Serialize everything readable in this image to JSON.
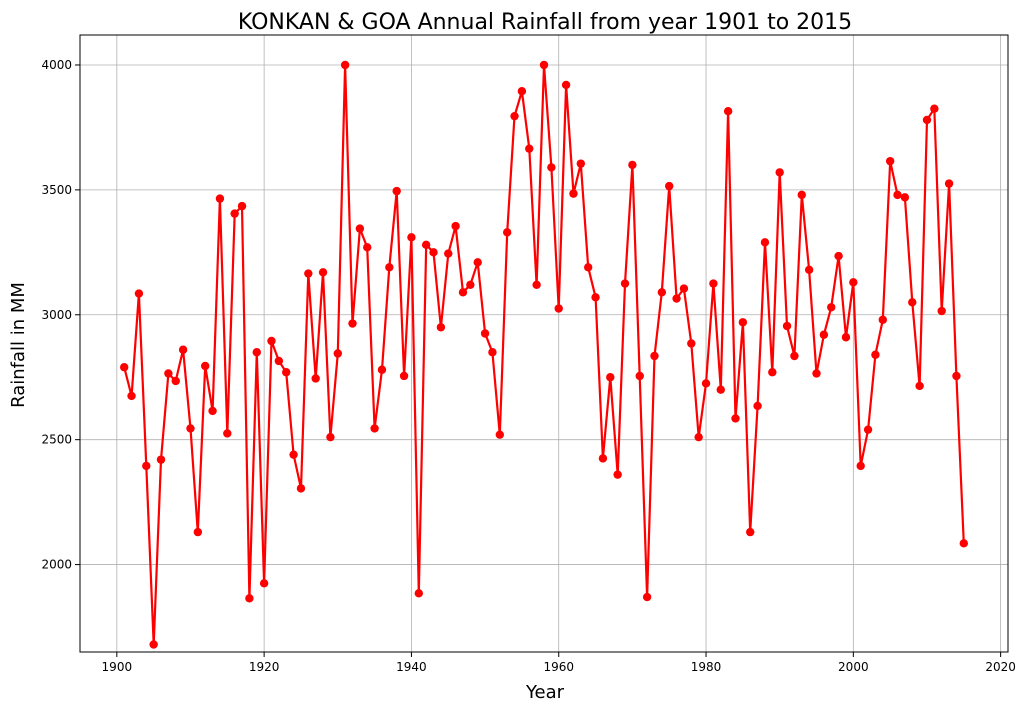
{
  "chart_data": {
    "type": "line",
    "title": "KONKAN & GOA Annual Rainfall from year 1901 to 2015",
    "xlabel": "Year",
    "ylabel": "Rainfall in MM",
    "xlim": [
      1895,
      2021
    ],
    "ylim": [
      1650,
      4120
    ],
    "xticks": [
      1900,
      1920,
      1940,
      1960,
      1980,
      2000,
      2020
    ],
    "yticks": [
      2000,
      2500,
      3000,
      3500,
      4000
    ],
    "grid": true,
    "color": "#ff0000",
    "marker": "circle",
    "series": [
      {
        "x": [
          1901,
          1902,
          1903,
          1904,
          1905,
          1906,
          1907,
          1908,
          1909,
          1910,
          1911,
          1912,
          1913,
          1914,
          1915,
          1916,
          1917,
          1918,
          1919,
          1920,
          1921,
          1922,
          1923,
          1924,
          1925,
          1926,
          1927,
          1928,
          1929,
          1930,
          1931,
          1932,
          1933,
          1934,
          1935,
          1936,
          1937,
          1938,
          1939,
          1940,
          1941,
          1942,
          1943,
          1944,
          1945,
          1946,
          1947,
          1948,
          1949,
          1950,
          1951,
          1952,
          1953,
          1954,
          1955,
          1956,
          1957,
          1958,
          1959,
          1960,
          1961,
          1962,
          1963,
          1964,
          1965,
          1966,
          1967,
          1968,
          1969,
          1970,
          1971,
          1972,
          1973,
          1974,
          1975,
          1976,
          1977,
          1978,
          1979,
          1980,
          1981,
          1982,
          1983,
          1984,
          1985,
          1986,
          1987,
          1988,
          1989,
          1990,
          1991,
          1992,
          1993,
          1994,
          1995,
          1996,
          1997,
          1998,
          1999,
          2000,
          2001,
          2002,
          2003,
          2004,
          2005,
          2006,
          2007,
          2008,
          2009,
          2010,
          2011,
          2012,
          2013,
          2014,
          2015
        ],
        "y": [
          2790,
          2675,
          3085,
          2395,
          1680,
          2420,
          2765,
          2735,
          2860,
          2545,
          2130,
          2795,
          2615,
          3465,
          2525,
          3405,
          3435,
          1865,
          2850,
          1925,
          2895,
          2815,
          2770,
          2440,
          2305,
          3165,
          2745,
          3170,
          2510,
          2845,
          4000,
          2965,
          3345,
          3270,
          2545,
          2780,
          3190,
          3495,
          2755,
          3310,
          1885,
          3280,
          3250,
          2950,
          3245,
          3355,
          3090,
          3120,
          3210,
          2925,
          2850,
          2520,
          3330,
          3795,
          3895,
          3665,
          3120,
          4000,
          3590,
          3025,
          3920,
          3485,
          3605,
          3190,
          3070,
          2425,
          2750,
          2360,
          3125,
          3600,
          2755,
          1870,
          2835,
          3090,
          3515,
          3065,
          3105,
          2885,
          2510,
          2725,
          3125,
          2700,
          3815,
          2585,
          2970,
          2130,
          2635,
          3290,
          2770,
          3570,
          2955,
          2835,
          3480,
          3180,
          2765,
          2920,
          3030,
          3235,
          2910,
          3130,
          2395,
          2540,
          2840,
          2980,
          3615,
          3480,
          3470,
          3050,
          2715,
          3780,
          3825,
          3015,
          3525,
          2755,
          2085
        ]
      }
    ]
  }
}
